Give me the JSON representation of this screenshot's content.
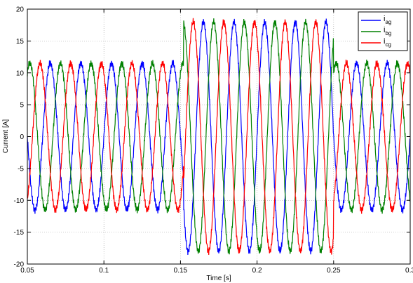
{
  "chart_data": {
    "type": "line",
    "title": "",
    "xlabel": "Time [s]",
    "ylabel": "Current [A]",
    "xlim": [
      0.05,
      0.3
    ],
    "ylim": [
      -20,
      20
    ],
    "xticks": [
      0.05,
      0.1,
      0.15,
      0.2,
      0.25,
      0.3
    ],
    "yticks": [
      -20,
      -15,
      -10,
      -5,
      0,
      5,
      10,
      15,
      20
    ],
    "xtick_labels": [
      "0.05",
      "0.1",
      "0.15",
      "0.2",
      "0.25",
      "0.3"
    ],
    "ytick_labels": [
      "-20",
      "-15",
      "-10",
      "-5",
      "0",
      "5",
      "10",
      "15",
      "20"
    ],
    "grid": true,
    "grid_style": "dotted",
    "legend_position": "top-right",
    "frequency_hz": 50,
    "segments": [
      {
        "t_start": 0.05,
        "t_end": 0.152,
        "amplitude": 11.5
      },
      {
        "t_start": 0.152,
        "t_end": 0.25,
        "amplitude": 18
      },
      {
        "t_start": 0.25,
        "t_end": 0.3,
        "amplitude": 11.5
      }
    ],
    "series": [
      {
        "name_main": "i",
        "name_sub": "ag",
        "color": "#0000ff",
        "phase_deg": 0
      },
      {
        "name_main": "i",
        "name_sub": "bg",
        "color": "#008000",
        "phase_deg": -120
      },
      {
        "name_main": "i",
        "name_sub": "cg",
        "color": "#ff0000",
        "phase_deg": 120
      }
    ]
  }
}
